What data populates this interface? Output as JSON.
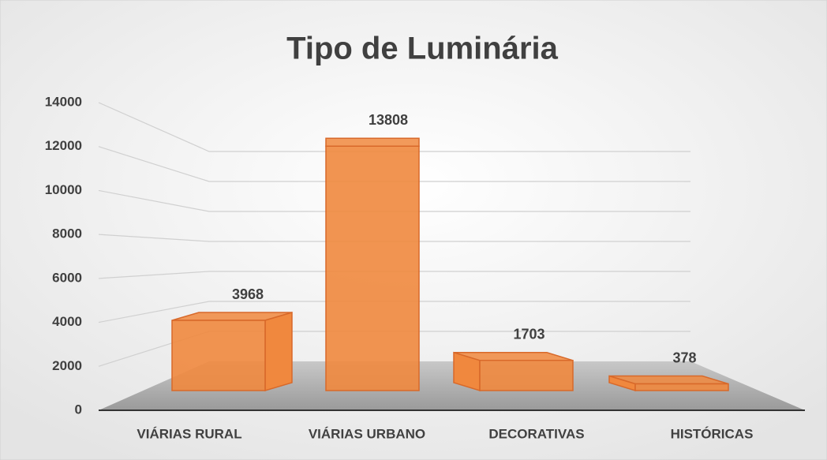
{
  "chart_data": {
    "type": "bar3d",
    "title": "Tipo de Luminária",
    "categories": [
      "VIÁRIAS RURAL",
      "VIÁRIAS URBANO",
      "DECORATIVAS",
      "HISTÓRICAS"
    ],
    "values": [
      3968,
      13808,
      1703,
      378
    ],
    "color": "#f0883e",
    "ylim": [
      0,
      14000
    ],
    "yticks": [
      0,
      2000,
      4000,
      6000,
      8000,
      10000,
      12000,
      14000
    ],
    "grid": true
  }
}
